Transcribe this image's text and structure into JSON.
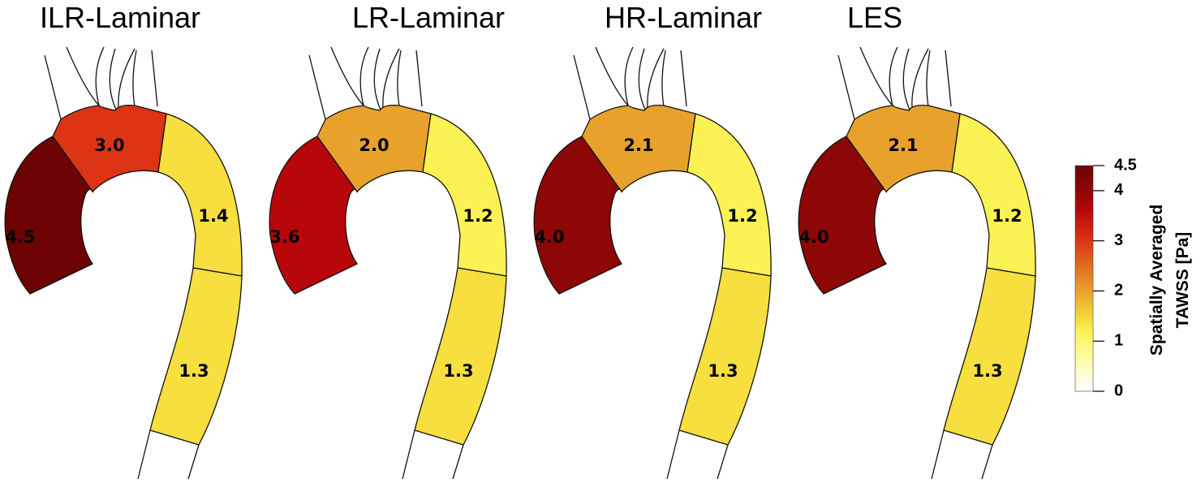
{
  "panels": [
    {
      "title": "ILR-Laminar",
      "segments": [
        {
          "id": "proximal",
          "label": "4.5",
          "value": 4.5
        },
        {
          "id": "arch",
          "label": "3.0",
          "value": 3.0
        },
        {
          "id": "descending-upper",
          "label": "1.4",
          "value": 1.4
        },
        {
          "id": "descending-lower",
          "label": "1.3",
          "value": 1.3
        }
      ]
    },
    {
      "title": "LR-Laminar",
      "segments": [
        {
          "id": "proximal",
          "label": "3.6",
          "value": 3.6
        },
        {
          "id": "arch",
          "label": "2.0",
          "value": 2.0
        },
        {
          "id": "descending-upper",
          "label": "1.2",
          "value": 1.2
        },
        {
          "id": "descending-lower",
          "label": "1.3",
          "value": 1.3
        }
      ]
    },
    {
      "title": "HR-Laminar",
      "segments": [
        {
          "id": "proximal",
          "label": "4.0",
          "value": 4.0
        },
        {
          "id": "arch",
          "label": "2.1",
          "value": 2.1
        },
        {
          "id": "descending-upper",
          "label": "1.2",
          "value": 1.2
        },
        {
          "id": "descending-lower",
          "label": "1.3",
          "value": 1.3
        }
      ]
    },
    {
      "title": "LES",
      "segments": [
        {
          "id": "proximal",
          "label": "4.0",
          "value": 4.0
        },
        {
          "id": "arch",
          "label": "2.1",
          "value": 2.1
        },
        {
          "id": "descending-upper",
          "label": "1.2",
          "value": 1.2
        },
        {
          "id": "descending-lower",
          "label": "1.3",
          "value": 1.3
        }
      ]
    }
  ],
  "colorbar": {
    "title_line1": "Spatially Averaged",
    "title_line2": "TAWSS [Pa]",
    "min": 0,
    "max": 4.5,
    "ticks": [
      {
        "label": "4.5",
        "value": 4.5
      },
      {
        "label": "4",
        "value": 4
      },
      {
        "label": "3",
        "value": 3
      },
      {
        "label": "2",
        "value": 2
      },
      {
        "label": "1",
        "value": 1
      },
      {
        "label": "0",
        "value": 0
      }
    ],
    "colormap": [
      {
        "v": 0.0,
        "color": "#ffffff"
      },
      {
        "v": 0.6,
        "color": "#fdfdae"
      },
      {
        "v": 1.2,
        "color": "#faf154"
      },
      {
        "v": 1.4,
        "color": "#f6df3e"
      },
      {
        "v": 2.0,
        "color": "#e8a22b"
      },
      {
        "v": 3.0,
        "color": "#dc3415"
      },
      {
        "v": 3.6,
        "color": "#b8070a"
      },
      {
        "v": 4.0,
        "color": "#8d0707"
      },
      {
        "v": 4.5,
        "color": "#6d0303"
      }
    ]
  }
}
